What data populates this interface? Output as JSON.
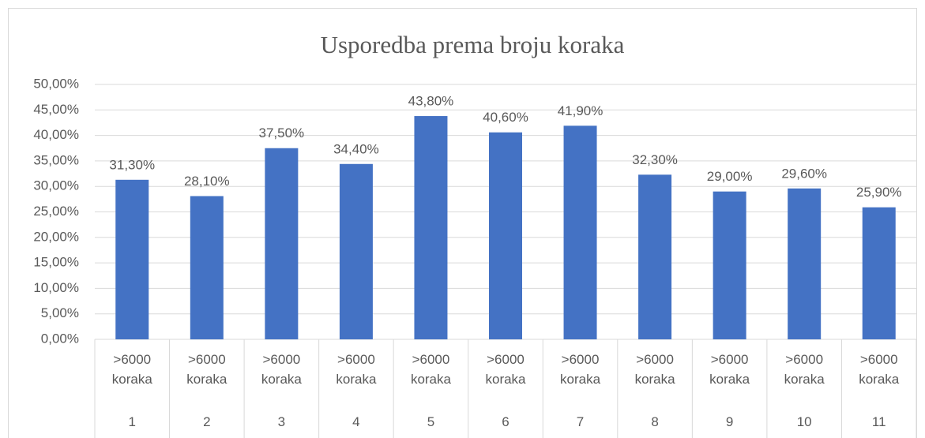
{
  "chart_data": {
    "type": "bar",
    "title": "Usporedba prema broju koraka",
    "categories": [
      ">6000 koraka",
      ">6000 koraka",
      ">6000 koraka",
      ">6000 koraka",
      ">6000 koraka",
      ">6000 koraka",
      ">6000 koraka",
      ">6000 koraka",
      ">6000 koraka",
      ">6000 koraka",
      ">6000 koraka"
    ],
    "category_groups": [
      "1",
      "2",
      "3",
      "4",
      "5",
      "6",
      "7",
      "8",
      "9",
      "10",
      "11"
    ],
    "values": [
      31.3,
      28.1,
      37.5,
      34.4,
      43.8,
      40.6,
      41.9,
      32.3,
      29.0,
      29.6,
      25.9
    ],
    "value_labels": [
      "31,30%",
      "28,10%",
      "37,50%",
      "34,40%",
      "43,80%",
      "40,60%",
      "41,90%",
      "32,30%",
      "29,00%",
      "29,60%",
      "25,90%"
    ],
    "color": "#4472c4",
    "ylim": [
      0,
      50
    ],
    "yticks": [
      {
        "value": 0,
        "label": "0,00%"
      },
      {
        "value": 5,
        "label": "5,00%"
      },
      {
        "value": 10,
        "label": "10,00%"
      },
      {
        "value": 15,
        "label": "15,00%"
      },
      {
        "value": 20,
        "label": "20,00%"
      },
      {
        "value": 25,
        "label": "25,00%"
      },
      {
        "value": 30,
        "label": "30,00%"
      },
      {
        "value": 35,
        "label": "35,00%"
      },
      {
        "value": 40,
        "label": "40,00%"
      },
      {
        "value": 45,
        "label": "45,00%"
      },
      {
        "value": 50,
        "label": "50,00%"
      }
    ],
    "grid": true
  }
}
